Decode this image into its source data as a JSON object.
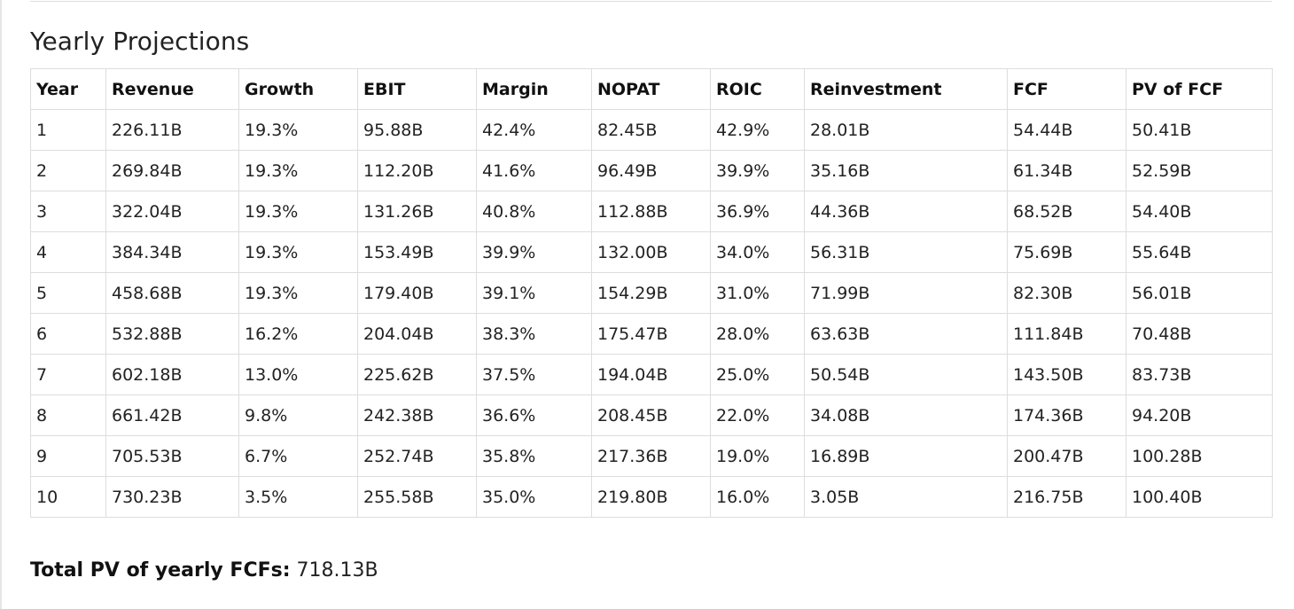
{
  "section": {
    "title": "Yearly Projections"
  },
  "table": {
    "columns": [
      "Year",
      "Revenue",
      "Growth",
      "EBIT",
      "Margin",
      "NOPAT",
      "ROIC",
      "Reinvestment",
      "FCF",
      "PV of FCF"
    ],
    "rows": [
      [
        "1",
        "226.11B",
        "19.3%",
        "95.88B",
        "42.4%",
        "82.45B",
        "42.9%",
        "28.01B",
        "54.44B",
        "50.41B"
      ],
      [
        "2",
        "269.84B",
        "19.3%",
        "112.20B",
        "41.6%",
        "96.49B",
        "39.9%",
        "35.16B",
        "61.34B",
        "52.59B"
      ],
      [
        "3",
        "322.04B",
        "19.3%",
        "131.26B",
        "40.8%",
        "112.88B",
        "36.9%",
        "44.36B",
        "68.52B",
        "54.40B"
      ],
      [
        "4",
        "384.34B",
        "19.3%",
        "153.49B",
        "39.9%",
        "132.00B",
        "34.0%",
        "56.31B",
        "75.69B",
        "55.64B"
      ],
      [
        "5",
        "458.68B",
        "19.3%",
        "179.40B",
        "39.1%",
        "154.29B",
        "31.0%",
        "71.99B",
        "82.30B",
        "56.01B"
      ],
      [
        "6",
        "532.88B",
        "16.2%",
        "204.04B",
        "38.3%",
        "175.47B",
        "28.0%",
        "63.63B",
        "111.84B",
        "70.48B"
      ],
      [
        "7",
        "602.18B",
        "13.0%",
        "225.62B",
        "37.5%",
        "194.04B",
        "25.0%",
        "50.54B",
        "143.50B",
        "83.73B"
      ],
      [
        "8",
        "661.42B",
        "9.8%",
        "242.38B",
        "36.6%",
        "208.45B",
        "22.0%",
        "34.08B",
        "174.36B",
        "94.20B"
      ],
      [
        "9",
        "705.53B",
        "6.7%",
        "252.74B",
        "35.8%",
        "217.36B",
        "19.0%",
        "16.89B",
        "200.47B",
        "100.28B"
      ],
      [
        "10",
        "730.23B",
        "3.5%",
        "255.58B",
        "35.0%",
        "219.80B",
        "16.0%",
        "3.05B",
        "216.75B",
        "100.40B"
      ]
    ]
  },
  "summary": {
    "label": "Total PV of yearly FCFs:",
    "value": "718.13B"
  }
}
